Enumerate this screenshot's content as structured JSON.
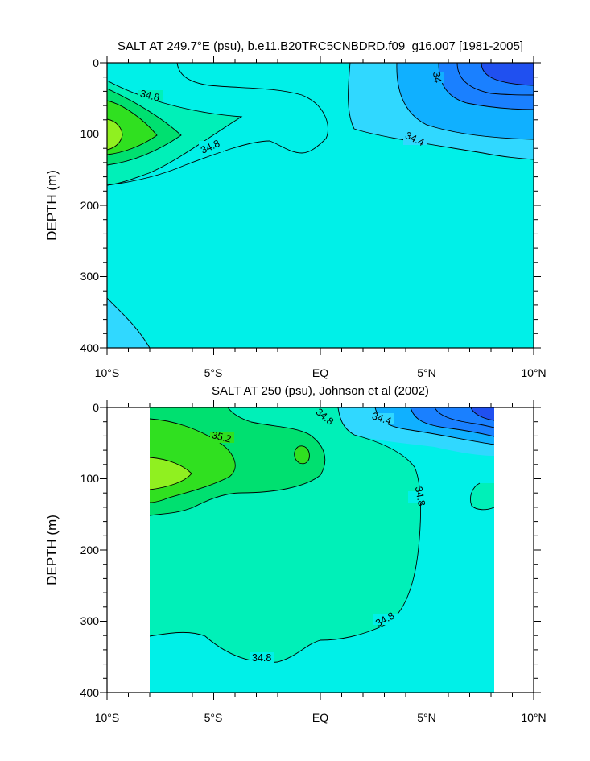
{
  "chart_data": [
    {
      "type": "contour",
      "title": "SALT AT 249.7°E (psu), b.e11.B20TRC5CNBDRD.f09_g16.007 [1981-2005]",
      "xlabel": "",
      "ylabel": "DEPTH (m)",
      "xlim": [
        -10,
        10
      ],
      "ylim": [
        400,
        0
      ],
      "x_ticks": [
        -10,
        -5,
        0,
        5,
        10
      ],
      "x_tick_labels": [
        "10°S",
        "5°S",
        "EQ",
        "5°N",
        "10°N"
      ],
      "y_ticks": [
        0,
        100,
        200,
        300,
        400
      ],
      "y_tick_labels": [
        "0",
        "100",
        "200",
        "300",
        "400"
      ],
      "contour_labels": [
        "34.8",
        "34.8",
        "34",
        "34.4"
      ],
      "fill_colors": {
        "lt_34": "#2050f0",
        "34_34.2": "#1a80ff",
        "34.2_34.4": "#10b0ff",
        "34.4_34.6": "#30d8ff",
        "34.6_34.8": "#00f0e8",
        "34.8_35.0": "#00f0b8",
        "35.0_35.2": "#00e070",
        "35.2_35.4": "#30e020",
        "35.4_35.6": "#90f020"
      },
      "grid": false
    },
    {
      "type": "contour",
      "title": "SALT AT 250 (psu), Johnson et al (2002)",
      "xlabel": "",
      "ylabel": "DEPTH (m)",
      "xlim": [
        -10,
        10
      ],
      "ylim": [
        400,
        0
      ],
      "data_xlim": [
        -8,
        8.2
      ],
      "x_ticks": [
        -10,
        -5,
        0,
        5,
        10
      ],
      "x_tick_labels": [
        "10°S",
        "5°S",
        "EQ",
        "5°N",
        "10°N"
      ],
      "y_ticks": [
        0,
        100,
        200,
        300,
        400
      ],
      "y_tick_labels": [
        "0",
        "100",
        "200",
        "300",
        "400"
      ],
      "contour_labels": [
        "34.8",
        "34.4",
        "35.2",
        "34.8",
        "34.8",
        "34.8"
      ],
      "grid": false
    }
  ]
}
